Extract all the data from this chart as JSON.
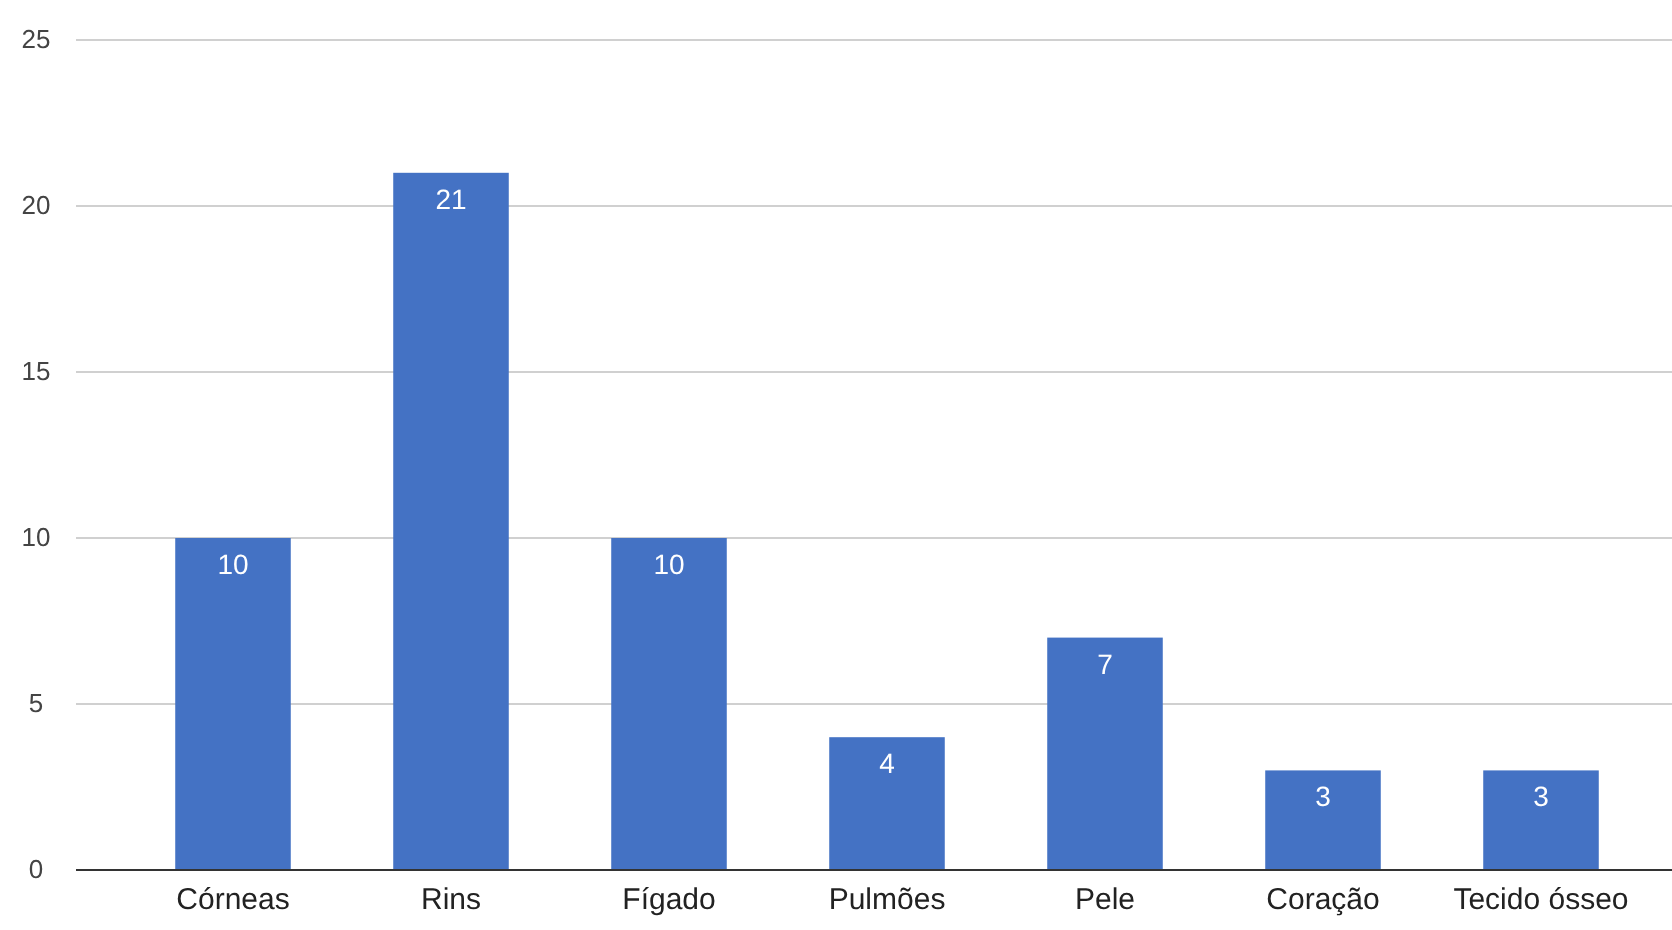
{
  "chart_data": {
    "type": "bar",
    "categories": [
      "Córneas",
      "Rins",
      "Fígado",
      "Pulmões",
      "Pele",
      "Coração",
      "Tecido ósseo"
    ],
    "values": [
      10,
      21,
      10,
      4,
      7,
      3,
      3
    ],
    "color": "#4472c4",
    "ylim": [
      0,
      25
    ],
    "yticks": [
      0,
      5,
      10,
      15,
      20,
      25
    ],
    "grid": "y",
    "data_labels": true
  }
}
